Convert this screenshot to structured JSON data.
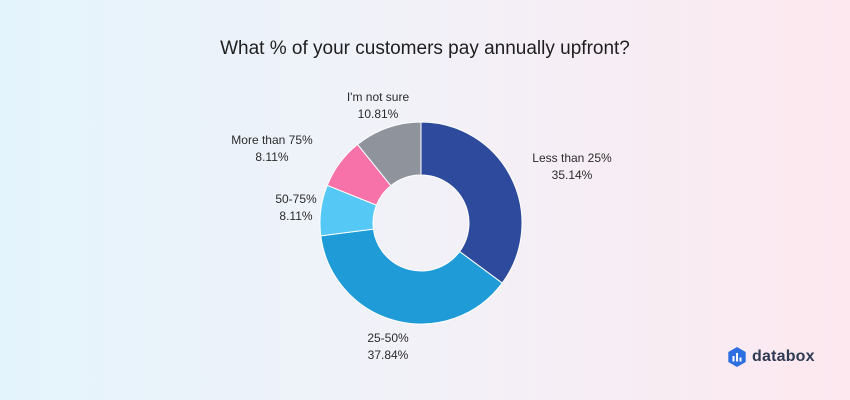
{
  "chart_data": {
    "type": "pie",
    "donut": true,
    "title": "What % of your customers pay annually upfront?",
    "slices": [
      {
        "label": "Less than 25%",
        "value": 35.14,
        "value_label": "35.14%",
        "color": "#2e4a9c"
      },
      {
        "label": "25-50%",
        "value": 37.84,
        "value_label": "37.84%",
        "color": "#1f9bd7"
      },
      {
        "label": "50-75%",
        "value": 8.11,
        "value_label": "8.11%",
        "color": "#56c8f5"
      },
      {
        "label": "More than 75%",
        "value": 8.11,
        "value_label": "8.11%",
        "color": "#f772a8"
      },
      {
        "label": "I'm not sure",
        "value": 10.81,
        "value_label": "10.81%",
        "color": "#8f949c"
      }
    ],
    "legend": "none"
  },
  "brand": {
    "name": "databox",
    "logo_icon": "databox-logo-icon"
  }
}
